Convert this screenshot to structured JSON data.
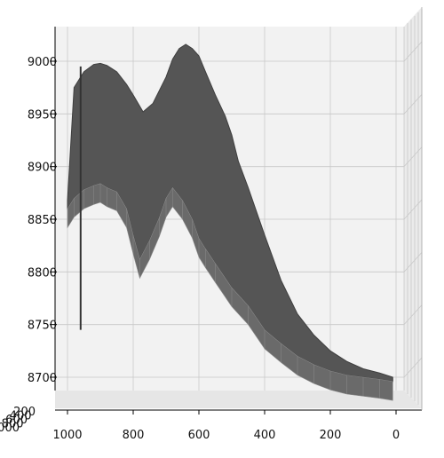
{
  "chart_data": {
    "type": "surface",
    "title": "",
    "xlabel": "",
    "ylabel": "",
    "zlabel": "",
    "grid": true,
    "pane_color": "#f2f2f2",
    "surface_color": "#555555",
    "x_ticks": [
      "1000",
      "800",
      "600",
      "400",
      "200",
      "0"
    ],
    "y_ticks": [
      "200",
      "400",
      "600",
      "800",
      "1000"
    ],
    "z_ticks": [
      "8700",
      "8750",
      "8800",
      "8850",
      "8900",
      "8950",
      "9000"
    ],
    "xlim": [
      1000,
      0
    ],
    "zlim": [
      8690,
      9025
    ],
    "front_profile": {
      "x": [
        1000,
        980,
        950,
        920,
        900,
        880,
        850,
        820,
        800,
        780,
        750,
        720,
        700,
        680,
        650,
        620,
        600,
        580,
        550,
        500,
        450,
        400,
        350,
        300,
        250,
        200,
        150,
        100,
        50,
        10
      ],
      "z": [
        8860,
        8870,
        8878,
        8882,
        8884,
        8880,
        8876,
        8860,
        8835,
        8812,
        8830,
        8852,
        8870,
        8880,
        8868,
        8850,
        8832,
        8822,
        8808,
        8785,
        8768,
        8745,
        8732,
        8720,
        8712,
        8706,
        8702,
        8700,
        8698,
        8696
      ]
    },
    "ridge_profile": {
      "x": [
        1000,
        980,
        950,
        920,
        900,
        880,
        850,
        820,
        800,
        770,
        740,
        700,
        680,
        660,
        640,
        620,
        600,
        580,
        550,
        520,
        500,
        480,
        450,
        400,
        350,
        300,
        250,
        200,
        150,
        100,
        50,
        10
      ],
      "z": [
        8868,
        8975,
        8990,
        8997,
        8998,
        8996,
        8990,
        8978,
        8968,
        8952,
        8960,
        8985,
        9002,
        9012,
        9016,
        9012,
        9005,
        8990,
        8968,
        8948,
        8930,
        8905,
        8880,
        8835,
        8792,
        8760,
        8740,
        8725,
        8715,
        8708,
        8704,
        8700
      ]
    },
    "left_drop": {
      "x": 960,
      "z": [
        8995,
        8870,
        8780,
        8745
      ]
    }
  }
}
